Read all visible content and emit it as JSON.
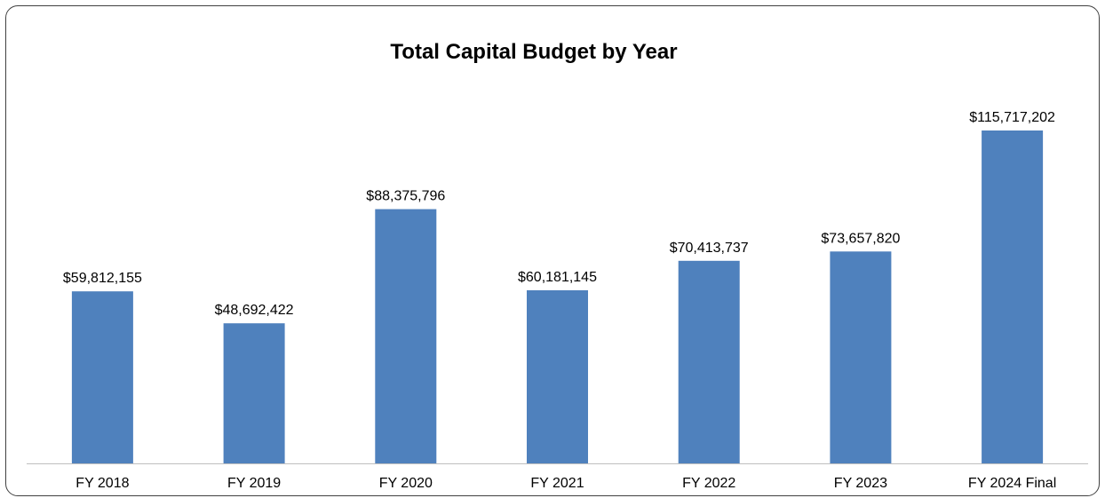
{
  "chart_data": {
    "type": "bar",
    "title": "Total Capital Budget by Year",
    "xlabel": "",
    "ylabel": "",
    "categories": [
      "FY 2018",
      "FY 2019",
      "FY 2020",
      "FY 2021",
      "FY 2022",
      "FY 2023",
      "FY 2024 Final"
    ],
    "values": [
      59812155,
      48692422,
      88375796,
      60181145,
      70413737,
      73657820,
      115717202
    ],
    "data_labels": [
      "$59,812,155",
      "$48,692,422",
      "$88,375,796",
      "$60,181,145",
      "$70,413,737",
      "$73,657,820",
      "$115,717,202"
    ],
    "ylim": [
      0,
      120000000
    ],
    "grid": false,
    "legend": "none",
    "bar_color": "#4F81BD",
    "axis_color": "#BFBFBF"
  }
}
